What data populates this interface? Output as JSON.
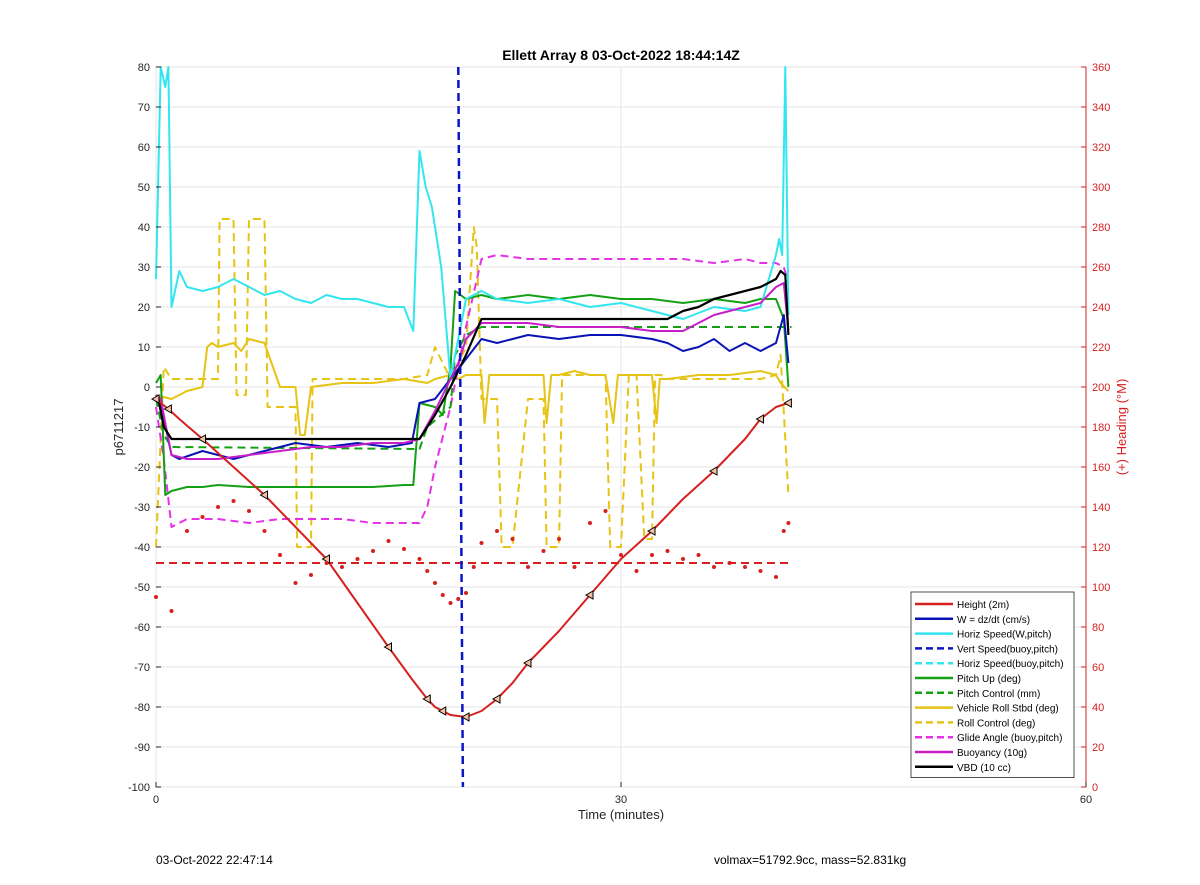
{
  "chart_data": {
    "type": "line",
    "title": "Ellett Array 8 03-Oct-2022 18:44:14Z",
    "xlabel": "Time (minutes)",
    "ylabel": "p6711217",
    "y2label": "(+) Heading (°M)",
    "xlim": [
      0,
      60
    ],
    "ylim": [
      -100,
      80
    ],
    "y2lim": [
      0,
      360
    ],
    "xticks": [
      0,
      30,
      60
    ],
    "yticks": [
      -100,
      -90,
      -80,
      -70,
      -60,
      -50,
      -40,
      -30,
      -20,
      -10,
      0,
      10,
      20,
      30,
      40,
      50,
      60,
      70,
      80
    ],
    "y2ticks": [
      0,
      20,
      40,
      60,
      80,
      100,
      120,
      140,
      160,
      180,
      200,
      220,
      240,
      260,
      280,
      300,
      320,
      340,
      360
    ],
    "grid": true,
    "legend_position": "bottom-right",
    "colors": {
      "height": "#d62020",
      "w": "#0a14b4",
      "horiz_speed_w": "#32e6f0",
      "vert_speed_buoy": "#0a14c8",
      "horiz_speed_buoy": "#32e6f0",
      "pitch_up": "#14a014",
      "pitch_control": "#14a014",
      "roll": "#e6c314",
      "roll_control": "#e6c314",
      "glide": "#e632e6",
      "buoyancy": "#c81ec8",
      "vbd": "#000000",
      "heading": "#d62020",
      "right_axis": "#d62020"
    },
    "legend": [
      {
        "name": "Height (2m)",
        "key": "height",
        "style": "solid"
      },
      {
        "name": "W = dz/dt (cm/s)",
        "key": "w",
        "style": "solid"
      },
      {
        "name": "Horiz Speed(W,pitch)",
        "key": "horiz_speed_w",
        "style": "solid"
      },
      {
        "name": "Vert Speed(buoy,pitch)",
        "key": "vert_speed_buoy",
        "style": "dashed"
      },
      {
        "name": "Horiz Speed(buoy,pitch)",
        "key": "horiz_speed_buoy",
        "style": "dashed"
      },
      {
        "name": "Pitch Up (deg)",
        "key": "pitch_up",
        "style": "solid"
      },
      {
        "name": "Pitch Control (mm)",
        "key": "pitch_control",
        "style": "dashed"
      },
      {
        "name": "Vehicle Roll Stbd (deg)",
        "key": "roll",
        "style": "solid"
      },
      {
        "name": "Roll Control (deg)",
        "key": "roll_control",
        "style": "dashed"
      },
      {
        "name": "Glide Angle (buoy,pitch)",
        "key": "glide",
        "style": "dashed"
      },
      {
        "name": "Buoyancy (10g)",
        "key": "buoyancy",
        "style": "solid"
      },
      {
        "name": "VBD (10 cc)",
        "key": "vbd",
        "style": "solid"
      }
    ],
    "series": {
      "height": {
        "x": [
          0,
          0.3,
          0.8,
          1.5,
          3,
          5,
          7,
          9,
          11,
          13,
          15,
          16.5,
          17.5,
          18,
          18.5,
          19,
          20,
          21,
          22,
          23,
          24,
          26,
          28,
          30,
          32,
          34,
          36,
          38,
          39,
          40,
          40.8
        ],
        "y": [
          -3,
          -4,
          -5.5,
          -8,
          -13,
          -20,
          -27,
          -35,
          -43,
          -54,
          -65,
          -73,
          -78,
          -80,
          -81,
          -82,
          -82.5,
          -81,
          -78,
          -74,
          -69,
          -61,
          -52,
          -43,
          -36,
          -28,
          -21,
          -13,
          -8,
          -5,
          -4
        ]
      },
      "w": {
        "x": [
          0,
          0.3,
          1,
          1.5,
          3,
          5,
          7,
          9,
          11,
          13,
          15,
          16.5,
          17,
          18,
          19,
          20,
          21,
          22,
          24,
          26,
          28,
          30,
          32,
          33,
          34,
          35,
          36,
          37,
          38,
          39,
          40,
          40.5,
          40.8
        ],
        "y": [
          -2,
          -4,
          -17,
          -18,
          -16,
          -18,
          -16,
          -14,
          -15,
          -14,
          -15,
          -14,
          -4,
          -3,
          2,
          7,
          12,
          11,
          13,
          12,
          13,
          13,
          12,
          11,
          9,
          10,
          12,
          9,
          11,
          9,
          11,
          18,
          6
        ]
      },
      "horiz_speed_w": {
        "x": [
          0,
          0.3,
          0.6,
          0.8,
          1,
          1.5,
          2,
          3,
          4,
          5,
          6,
          7,
          8,
          9,
          10,
          11,
          12,
          13,
          14,
          15,
          16,
          16.6,
          17,
          17.4,
          17.8,
          18.4,
          19,
          19.3,
          20,
          21,
          22,
          24,
          26,
          28,
          30,
          32,
          34,
          36,
          38,
          39,
          40,
          40.2,
          40.4,
          40.6,
          40.8
        ],
        "y": [
          27,
          80,
          75,
          80,
          20,
          29,
          25,
          24,
          25,
          27,
          25,
          23,
          24,
          22,
          21,
          23,
          22,
          22,
          21,
          20,
          20,
          14,
          59,
          50,
          45,
          30,
          2,
          8,
          22,
          24,
          22,
          21,
          22,
          20,
          21,
          19,
          17,
          20,
          19,
          20,
          33,
          37,
          33,
          80,
          18
        ]
      },
      "vert_speed_buoy": {
        "x": [
          19.5,
          19.8
        ],
        "y": [
          80,
          -100
        ]
      },
      "pitch_up": {
        "x": [
          0,
          0.3,
          0.6,
          1,
          2,
          3,
          4,
          6,
          8,
          10,
          12,
          14,
          16,
          16.6,
          17,
          18,
          18.5,
          19,
          19.3,
          20,
          21,
          22,
          24,
          26,
          28,
          30,
          32,
          34,
          36,
          38,
          39,
          40,
          40.5,
          40.8
        ],
        "y": [
          1,
          3,
          -27,
          -26,
          -25,
          -25,
          -24.5,
          -25,
          -25,
          -25,
          -25,
          -25,
          -24.5,
          -24.5,
          -4,
          -5,
          -7,
          5,
          24,
          22,
          23,
          22,
          23,
          22,
          23,
          22,
          22,
          21,
          22,
          21,
          22,
          22,
          17,
          0
        ]
      },
      "pitch_control": {
        "x": [
          0,
          0.5,
          1,
          17,
          17.5,
          19,
          19.3,
          20,
          21,
          41
        ],
        "y": [
          -3,
          -12,
          -15,
          -15.5,
          -10,
          -5,
          8,
          13,
          15,
          15
        ]
      },
      "roll": {
        "x": [
          0,
          1,
          2,
          3,
          3.3,
          3.6,
          4,
          5,
          5.5,
          6,
          7,
          8,
          9,
          9.3,
          9.6,
          10,
          12,
          14,
          16,
          17.5,
          18,
          19,
          19.5,
          20,
          21,
          21.2,
          21.5,
          22,
          24,
          25,
          25.2,
          25.5,
          26,
          27,
          28,
          29,
          29.5,
          29.8,
          30,
          31,
          32,
          32.3,
          32.5,
          33,
          35,
          37,
          39,
          40,
          40.3,
          40.8
        ],
        "y": [
          -2,
          -3,
          -1,
          0,
          10,
          11,
          10,
          11,
          9,
          12,
          11,
          0,
          0,
          -12,
          -12,
          0,
          1,
          1,
          2,
          1,
          2,
          3,
          2,
          3,
          3,
          -9,
          3,
          3,
          3,
          3,
          -9,
          3,
          3,
          4,
          3,
          3,
          -9,
          3,
          3,
          3,
          3,
          -9,
          2,
          2,
          3,
          3,
          4,
          3,
          1,
          -1
        ]
      },
      "roll_control": {
        "x": [
          0,
          0.5,
          1,
          1.5,
          2,
          3,
          4,
          4.1,
          5,
          5.2,
          5.8,
          6,
          7,
          7.2,
          8,
          9,
          9.1,
          10,
          10.1,
          12,
          14,
          16,
          17.5,
          18,
          19,
          20,
          20.5,
          20.7,
          21,
          22,
          22.3,
          23,
          24,
          25,
          25.2,
          26,
          26.2,
          27,
          28,
          29,
          29.3,
          30,
          30.5,
          31,
          31.5,
          32,
          32.2,
          32.6,
          33,
          35,
          37,
          39,
          40,
          40.3,
          40.8
        ],
        "y": [
          -40,
          5,
          2,
          2,
          2,
          2,
          2,
          42,
          42,
          -2,
          -2,
          42,
          42,
          -5,
          -5,
          -5,
          -40,
          -40,
          2,
          2,
          2,
          2,
          3,
          10,
          2,
          10,
          40,
          35,
          -3,
          -3,
          -40,
          -40,
          -3,
          -3,
          -40,
          -40,
          3,
          3,
          3,
          3,
          -40,
          -40,
          3,
          3,
          -38,
          -38,
          3,
          3,
          2,
          2,
          2,
          2,
          3,
          8,
          -27
        ]
      },
      "glide": {
        "x": [
          0,
          0.5,
          1,
          1.5,
          2,
          4,
          6,
          8,
          10,
          12,
          14,
          16,
          17,
          17.5,
          18,
          19,
          20,
          21,
          22,
          24,
          26,
          28,
          30,
          32,
          34,
          36,
          38,
          39,
          40,
          40.5,
          40.8
        ],
        "y": [
          -5,
          -18,
          -35,
          -34,
          -33,
          -33,
          -34,
          -33,
          -33,
          -33,
          -34,
          -34,
          -34,
          -30,
          -20,
          -5,
          15,
          32,
          33,
          32,
          32,
          32,
          32,
          32,
          32,
          31,
          32,
          31,
          31,
          30,
          26
        ]
      },
      "buoyancy": {
        "x": [
          0,
          0.3,
          1,
          2,
          4,
          6,
          8,
          10,
          12,
          14,
          16,
          17,
          18,
          19,
          19.5,
          20,
          21,
          22,
          24,
          26,
          28,
          30,
          32,
          34,
          36,
          38,
          39,
          40,
          40.5,
          40.8
        ],
        "y": [
          -2,
          -3,
          -17,
          -18,
          -18,
          -17,
          -16,
          -15,
          -15,
          -14,
          -14,
          -13,
          -6,
          2,
          6,
          12,
          16,
          16,
          16,
          15,
          15,
          15,
          14,
          14,
          18,
          20,
          21,
          25,
          26,
          14
        ]
      },
      "vbd": {
        "x": [
          0,
          0.2,
          0.5,
          1,
          2,
          16.5,
          17,
          18,
          19,
          20,
          21,
          22,
          30,
          33,
          34,
          35,
          36,
          37,
          38,
          39,
          40,
          40.3,
          40.6,
          40.8
        ],
        "y": [
          -3,
          -4,
          -10,
          -13,
          -13,
          -13,
          -13,
          -7,
          0,
          8,
          17,
          17,
          17,
          17,
          19,
          20,
          22,
          23,
          24,
          25,
          27,
          29,
          28,
          13
        ]
      },
      "heading_ref": {
        "x": [
          0,
          41
        ],
        "y": [
          112,
          112
        ]
      },
      "heading": {
        "x": [
          0,
          1,
          2,
          3,
          4,
          5,
          6,
          7,
          8,
          9,
          10,
          11,
          12,
          13,
          14,
          15,
          16,
          17,
          17.5,
          18,
          18.5,
          19,
          19.5,
          20,
          20.5,
          21,
          22,
          23,
          24,
          25,
          26,
          27,
          28,
          29,
          30,
          31,
          32,
          33,
          34,
          35,
          36,
          37,
          38,
          39,
          40,
          40.5,
          40.8
        ],
        "y": [
          95,
          88,
          128,
          135,
          140,
          143,
          138,
          128,
          116,
          102,
          106,
          112,
          110,
          114,
          118,
          123,
          119,
          114,
          108,
          102,
          96,
          92,
          94,
          97,
          110,
          122,
          128,
          124,
          110,
          118,
          124,
          110,
          132,
          138,
          116,
          108,
          116,
          118,
          114,
          116,
          110,
          112,
          110,
          108,
          105,
          128,
          132
        ]
      }
    }
  },
  "footer": {
    "timestamp": "03-Oct-2022 22:47:14",
    "stats": "volmax=51792.9cc, mass=52.831kg"
  }
}
